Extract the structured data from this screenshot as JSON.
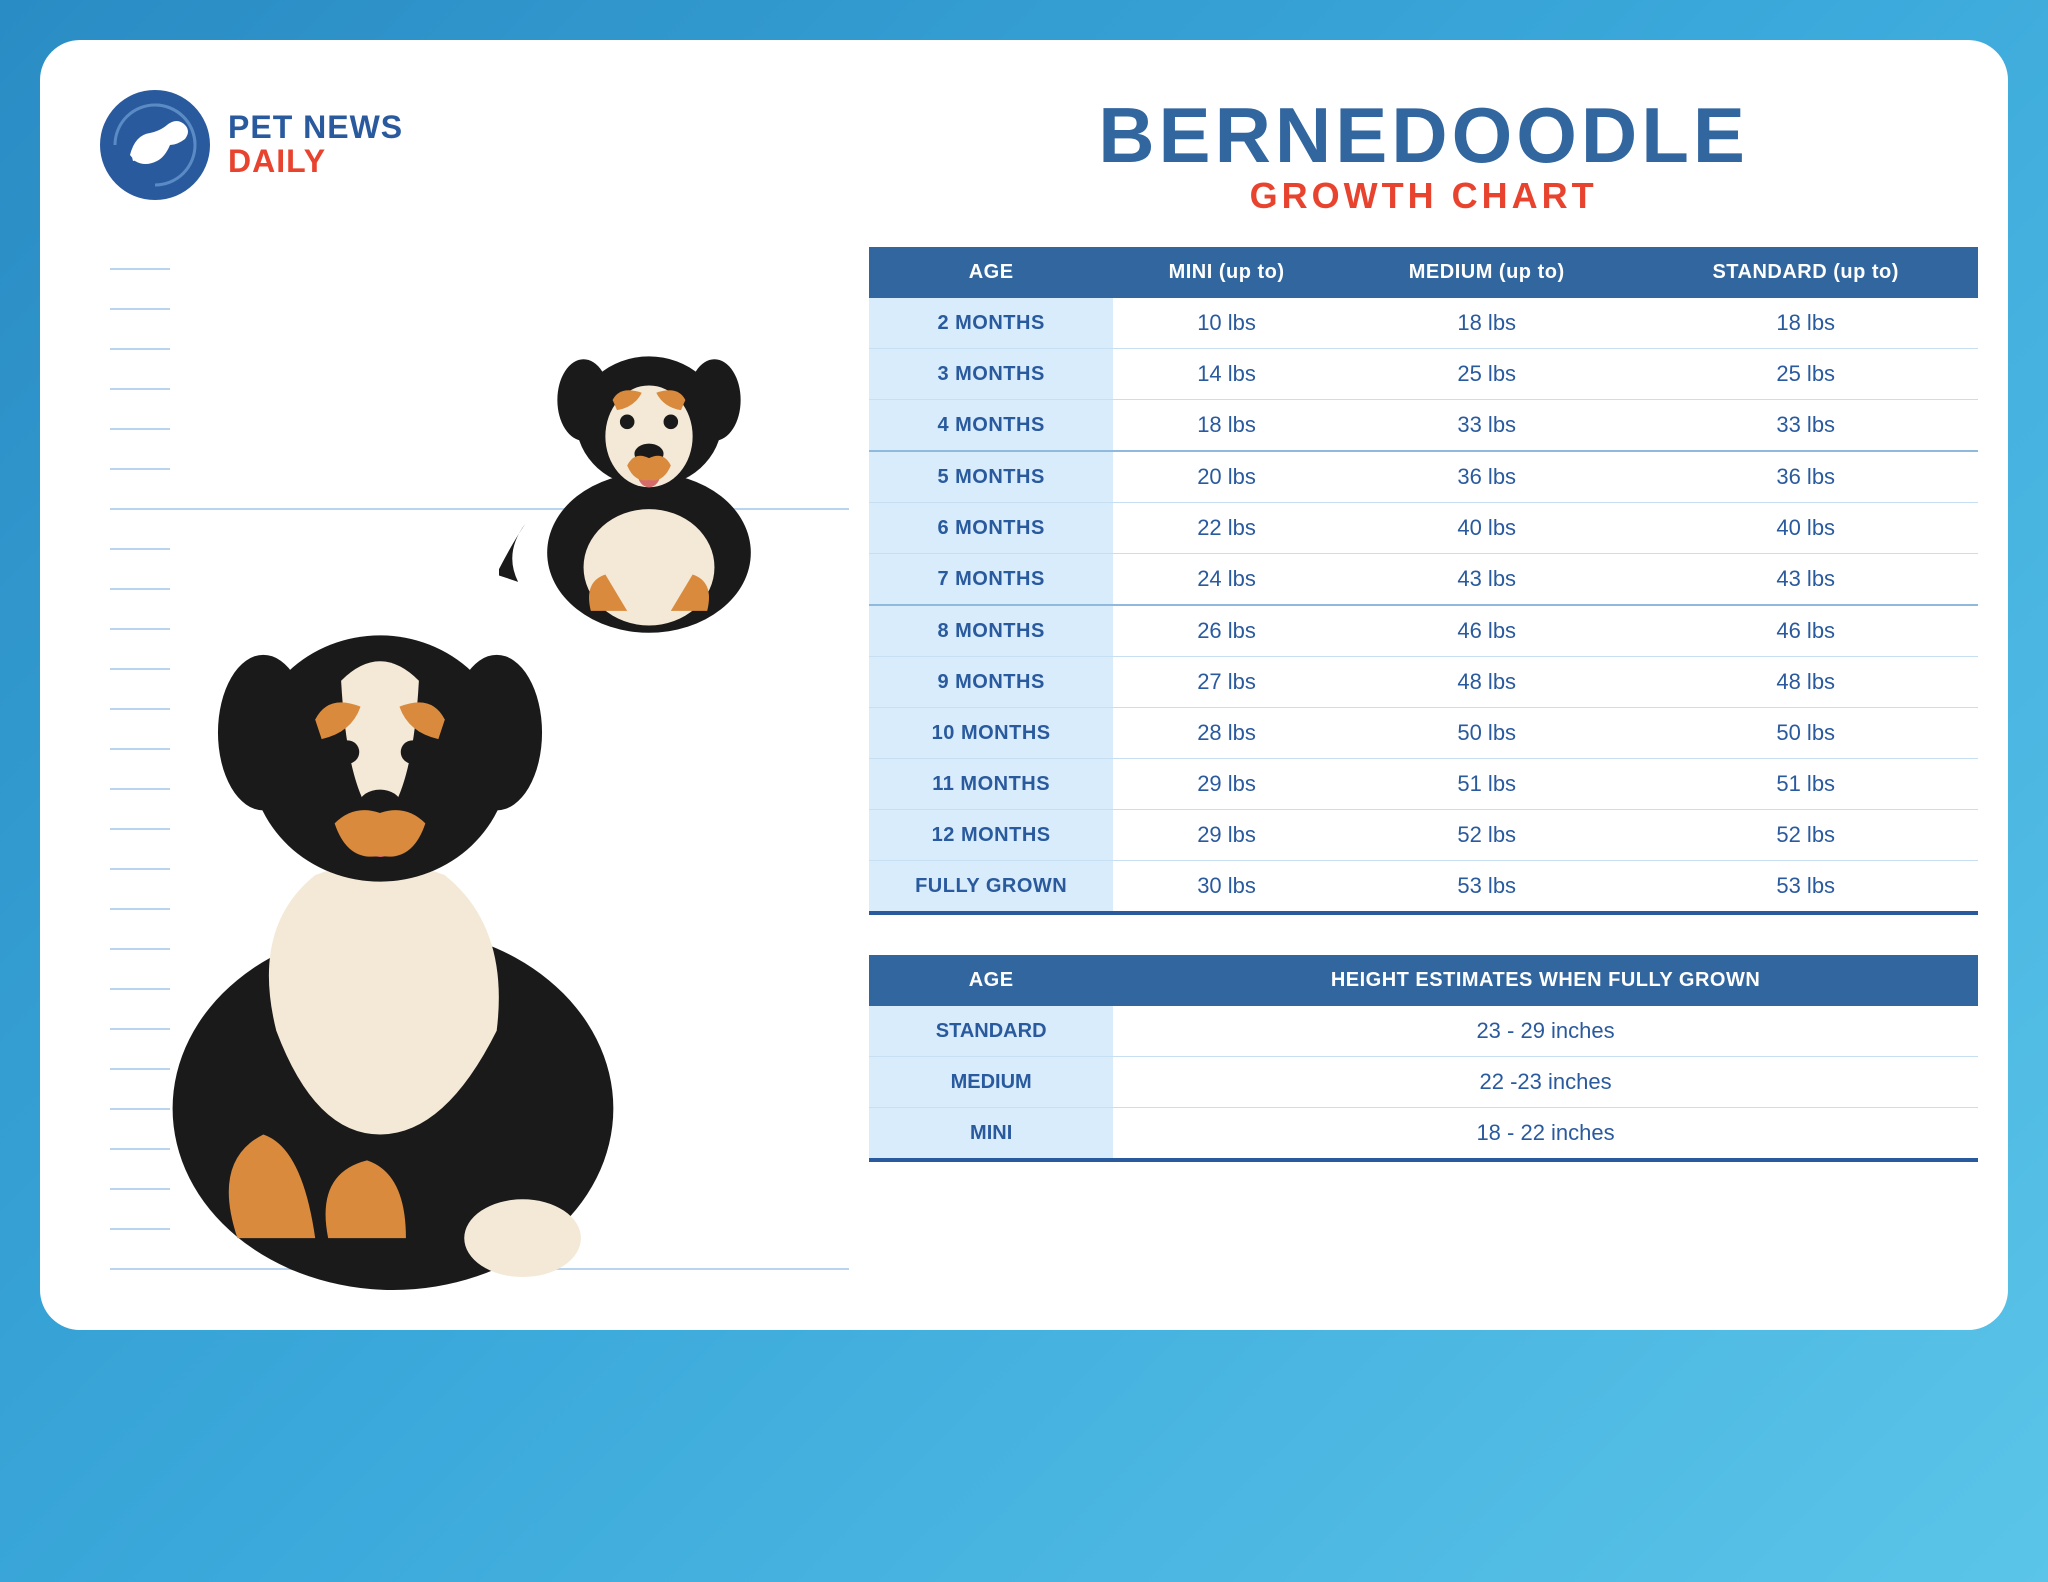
{
  "logo": {
    "line1": "PET NEWS",
    "line2": "DAILY"
  },
  "title": {
    "main": "BERNEDOODLE",
    "sub": "GROWTH CHART"
  },
  "colors": {
    "bg_gradient_start": "#2a8cc4",
    "bg_gradient_end": "#5bc4e8",
    "card_bg": "#ffffff",
    "primary_blue": "#32669f",
    "dark_blue": "#2a5a9e",
    "accent_red": "#e8432e",
    "row_alt_bg": "#d8ecfb",
    "row_border": "#c6dff3",
    "ruler_line": "#b9d4ee",
    "dog_black": "#1a1a1a",
    "dog_tan": "#d98a3c",
    "dog_cream": "#f4e9d6",
    "dog_tongue": "#d46b6b"
  },
  "typography": {
    "title_fontsize": 78,
    "subtitle_fontsize": 36,
    "table_header_fontsize": 20,
    "table_cell_fontsize": 22,
    "logo_fontsize": 32
  },
  "growth_table": {
    "type": "table",
    "columns": [
      "AGE",
      "MINI (up to)",
      "MEDIUM (up to)",
      "STANDARD (up to)"
    ],
    "rows": [
      {
        "age": "2 MONTHS",
        "mini": "10 lbs",
        "medium": "18 lbs",
        "standard": "18 lbs"
      },
      {
        "age": "3 MONTHS",
        "mini": "14 lbs",
        "medium": "25 lbs",
        "standard": "25 lbs"
      },
      {
        "age": "4 MONTHS",
        "mini": "18 lbs",
        "medium": "33 lbs",
        "standard": "33 lbs"
      },
      {
        "age": "5 MONTHS",
        "mini": "20 lbs",
        "medium": "36 lbs",
        "standard": "36 lbs"
      },
      {
        "age": "6 MONTHS",
        "mini": "22 lbs",
        "medium": "40 lbs",
        "standard": "40 lbs"
      },
      {
        "age": "7 MONTHS",
        "mini": "24 lbs",
        "medium": "43 lbs",
        "standard": "43 lbs"
      },
      {
        "age": "8 MONTHS",
        "mini": "26 lbs",
        "medium": "46 lbs",
        "standard": "46 lbs"
      },
      {
        "age": "9 MONTHS",
        "mini": "27 lbs",
        "medium": "48 lbs",
        "standard": "48 lbs"
      },
      {
        "age": "10 MONTHS",
        "mini": "28 lbs",
        "medium": "50 lbs",
        "standard": "50 lbs"
      },
      {
        "age": "11 MONTHS",
        "mini": "29 lbs",
        "medium": "51 lbs",
        "standard": "51 lbs"
      },
      {
        "age": "12 MONTHS",
        "mini": "29 lbs",
        "medium": "52 lbs",
        "standard": "52 lbs"
      },
      {
        "age": "FULLY GROWN",
        "mini": "30 lbs",
        "medium": "53 lbs",
        "standard": "53 lbs"
      }
    ]
  },
  "height_table": {
    "type": "table",
    "columns": [
      "AGE",
      "HEIGHT ESTIMATES WHEN FULLY GROWN"
    ],
    "rows": [
      {
        "age": "STANDARD",
        "height": "23 - 29 inches"
      },
      {
        "age": "MEDIUM",
        "height": "22 -23 inches"
      },
      {
        "age": "MINI",
        "height": "18 - 22 inches"
      }
    ]
  },
  "illustration": {
    "description": "Two Bernedoodle dogs (tricolor black/tan/cream) against a height-ruler backdrop, one large adult and one small puppy.",
    "ruler_line_count": 26
  }
}
